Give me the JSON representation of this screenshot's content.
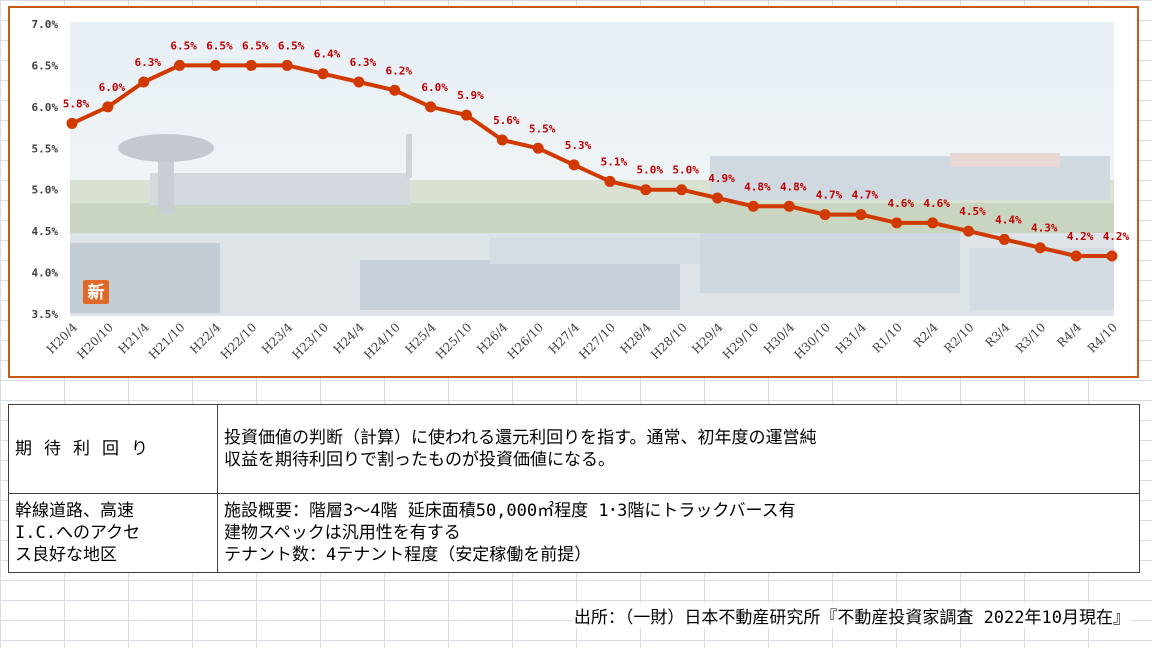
{
  "chart_data": {
    "type": "line",
    "title": "",
    "xlabel": "",
    "ylabel": "",
    "categories": [
      "H20/4",
      "H20/10",
      "H21/4",
      "H21/10",
      "H22/4",
      "H22/10",
      "H23/4",
      "H23/10",
      "H24/4",
      "H24/10",
      "H25/4",
      "H25/10",
      "H26/4",
      "H26/10",
      "H27/4",
      "H27/10",
      "H28/4",
      "H28/10",
      "H29/4",
      "H29/10",
      "H30/4",
      "H30/10",
      "H31/4",
      "R1/10",
      "R2/4",
      "R2/10",
      "R3/4",
      "R3/10",
      "R4/4",
      "R4/10"
    ],
    "values": [
      5.8,
      6.0,
      6.3,
      6.5,
      6.5,
      6.5,
      6.5,
      6.4,
      6.3,
      6.2,
      6.0,
      5.9,
      5.6,
      5.5,
      5.3,
      5.1,
      5.0,
      5.0,
      4.9,
      4.8,
      4.8,
      4.7,
      4.7,
      4.6,
      4.6,
      4.5,
      4.4,
      4.3,
      4.2,
      4.2
    ],
    "data_labels": [
      "5.8%",
      "6.0%",
      "6.3%",
      "6.5%",
      "6.5%",
      "6.5%",
      "6.5%",
      "6.4%",
      "6.3%",
      "6.2%",
      "6.0%",
      "5.9%",
      "5.6%",
      "5.5%",
      "5.3%",
      "5.1%",
      "5.0%",
      "5.0%",
      "4.9%",
      "4.8%",
      "4.8%",
      "4.7%",
      "4.7%",
      "4.6%",
      "4.6%",
      "4.5%",
      "4.4%",
      "4.3%",
      "4.2%",
      "4.2%"
    ],
    "ylim": [
      3.5,
      7.0
    ],
    "yticks": [
      "3.5%",
      "4.0%",
      "4.5%",
      "5.0%",
      "5.5%",
      "6.0%",
      "6.5%",
      "7.0%"
    ],
    "grid": false,
    "legend": "none",
    "line_color": "#d03a00",
    "label_color": "#c00000",
    "badge": "新"
  },
  "table": {
    "row1": {
      "head": "期待利回り",
      "lines": [
        "投資価値の判断（計算）に使われる還元利回りを指す。通常、初年度の運営純",
        "収益を期待利回りで割ったものが投資価値になる。"
      ]
    },
    "row2": {
      "head_lines": [
        "幹線道路、高速",
        "I.C.へのアクセ",
        "ス良好な地区"
      ],
      "lines": [
        "施設概要：階層3～4階 延床面積50,000㎡程度 1･3階にトラックバース有",
        "建物スペックは汎用性を有する",
        "テナント数：4テナント程度（安定稼働を前提）"
      ]
    }
  },
  "source": "出所：（一財）日本不動産研究所『不動産投資家調査 2022年10月現在』"
}
